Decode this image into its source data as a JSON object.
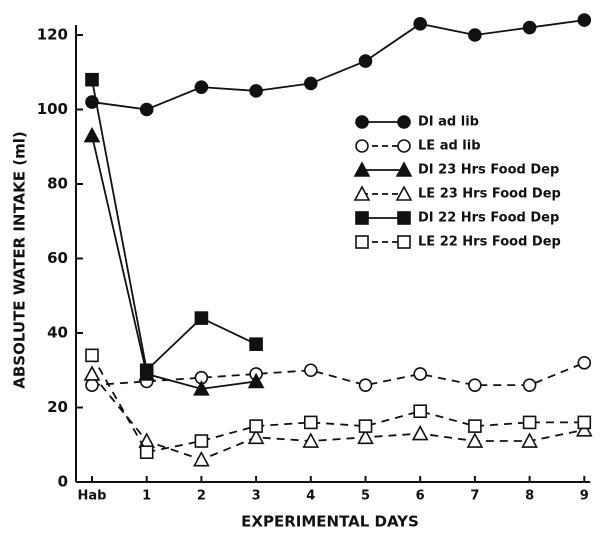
{
  "chart_data": {
    "type": "line",
    "x_label": "EXPERIMENTAL DAYS",
    "y_label": "ABSOLUTE WATER INTAKE (ml)",
    "categories": [
      "Hab",
      "1",
      "2",
      "3",
      "4",
      "5",
      "6",
      "7",
      "8",
      "9"
    ],
    "ylim": [
      0,
      120
    ],
    "yticks": [
      0,
      20,
      40,
      60,
      80,
      100,
      120
    ],
    "legend": "upper right",
    "series": [
      {
        "name": "DI ad lib",
        "color": "#111111",
        "marker": "circle",
        "filled": true,
        "dashed": false,
        "values": [
          102,
          100,
          106,
          105,
          107,
          113,
          123,
          120,
          122,
          124
        ]
      },
      {
        "name": "LE ad lib",
        "color": "#111111",
        "marker": "circle",
        "filled": false,
        "dashed": true,
        "values": [
          26,
          27,
          28,
          29,
          30,
          26,
          29,
          26,
          26,
          32
        ]
      },
      {
        "name": "DI 23 Hrs Food Dep",
        "color": "#111111",
        "marker": "triangle",
        "filled": true,
        "dashed": false,
        "values": [
          93,
          29,
          25,
          27,
          null,
          null,
          null,
          null,
          null,
          null
        ]
      },
      {
        "name": "LE 23 Hrs Food Dep",
        "color": "#111111",
        "marker": "triangle",
        "filled": false,
        "dashed": true,
        "values": [
          29,
          11,
          6,
          12,
          11,
          12,
          13,
          11,
          11,
          14
        ]
      },
      {
        "name": "DI 22 Hrs Food Dep",
        "color": "#111111",
        "marker": "square",
        "filled": true,
        "dashed": false,
        "values": [
          108,
          30,
          44,
          37,
          null,
          null,
          null,
          null,
          null,
          null
        ]
      },
      {
        "name": "LE 22 Hrs Food Dep",
        "color": "#111111",
        "marker": "square",
        "filled": false,
        "dashed": true,
        "values": [
          34,
          8,
          11,
          15,
          16,
          15,
          19,
          15,
          16,
          16
        ]
      }
    ]
  }
}
